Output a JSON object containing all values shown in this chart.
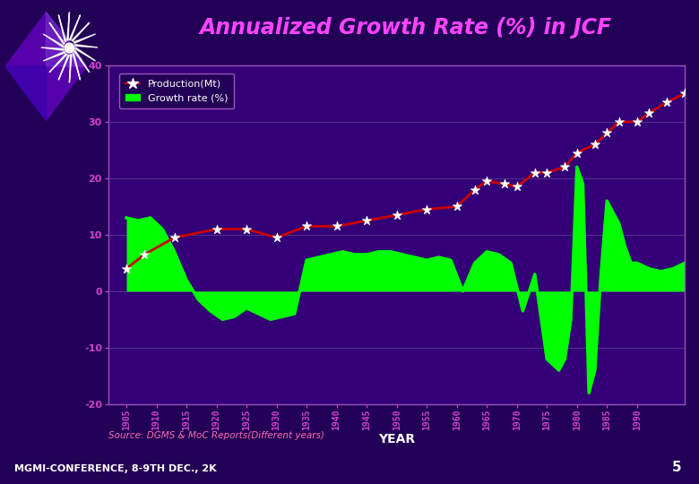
{
  "title": "Annualized Growth Rate (%) in JCF",
  "title_color": "#FF44FF",
  "background_color": "#220055",
  "plot_background_color": "#330077",
  "xlabel": "YEAR",
  "xlabel_color": "white",
  "production_color": "#cc0000",
  "production_marker_color": "white",
  "growth_rate_color": "#00ff00",
  "legend_bg": "#220055",
  "ylim": [
    -20,
    40
  ],
  "yticks": [
    -20,
    -10,
    0,
    10,
    20,
    30,
    40
  ],
  "xticks": [
    1905,
    1910,
    1915,
    1920,
    1925,
    1930,
    1935,
    1940,
    1945,
    1950,
    1955,
    1960,
    1965,
    1970,
    1975,
    1980,
    1985,
    1990
  ],
  "source_text": "Source: DGMS & MoC Reports(Different years)",
  "source_color": "#ff69b4",
  "footer_text": "MGMI-CONFERENCE, 8-9TH DEC., 2K",
  "footer_color": "white",
  "page_number": "5",
  "years_prod": [
    1905,
    1908,
    1913,
    1920,
    1925,
    1930,
    1935,
    1940,
    1945,
    1950,
    1955,
    1960,
    1963,
    1965,
    1968,
    1970,
    1973,
    1975,
    1978,
    1980,
    1983,
    1985,
    1987,
    1990,
    1992,
    1995,
    1998
  ],
  "prod_vals": [
    4.0,
    6.5,
    9.5,
    11.0,
    11.0,
    9.5,
    11.5,
    11.5,
    12.5,
    13.5,
    14.5,
    15.0,
    18.0,
    19.5,
    19.0,
    18.5,
    21.0,
    21.0,
    22.0,
    24.5,
    26.0,
    28.0,
    30.0,
    30.0,
    31.5,
    33.5,
    35.0
  ],
  "years_gr": [
    1905,
    1907,
    1909,
    1911,
    1913,
    1915,
    1917,
    1919,
    1921,
    1923,
    1925,
    1927,
    1929,
    1931,
    1933,
    1935,
    1937,
    1939,
    1941,
    1943,
    1945,
    1947,
    1949,
    1951,
    1953,
    1955,
    1957,
    1959,
    1961,
    1963,
    1965,
    1967,
    1969,
    1971,
    1973,
    1975,
    1977,
    1978,
    1979,
    1980,
    1981,
    1982,
    1983,
    1984,
    1985,
    1986,
    1987,
    1988,
    1989,
    1990,
    1992,
    1994,
    1996,
    1998
  ],
  "gr_vals": [
    13.0,
    12.5,
    13.0,
    11.0,
    7.0,
    2.0,
    -1.5,
    -3.5,
    -5.0,
    -4.5,
    -3.0,
    -4.0,
    -5.0,
    -4.5,
    -4.0,
    5.5,
    6.0,
    6.5,
    7.0,
    6.5,
    6.5,
    7.0,
    7.0,
    6.5,
    6.0,
    5.5,
    6.0,
    5.5,
    0.0,
    5.0,
    7.0,
    6.5,
    5.0,
    -3.5,
    3.0,
    -12.0,
    -14.0,
    -12.0,
    -5.0,
    22.0,
    19.0,
    -18.0,
    -14.0,
    3.0,
    16.0,
    14.0,
    12.0,
    8.0,
    5.0,
    5.0,
    4.0,
    3.5,
    4.0,
    5.0
  ]
}
